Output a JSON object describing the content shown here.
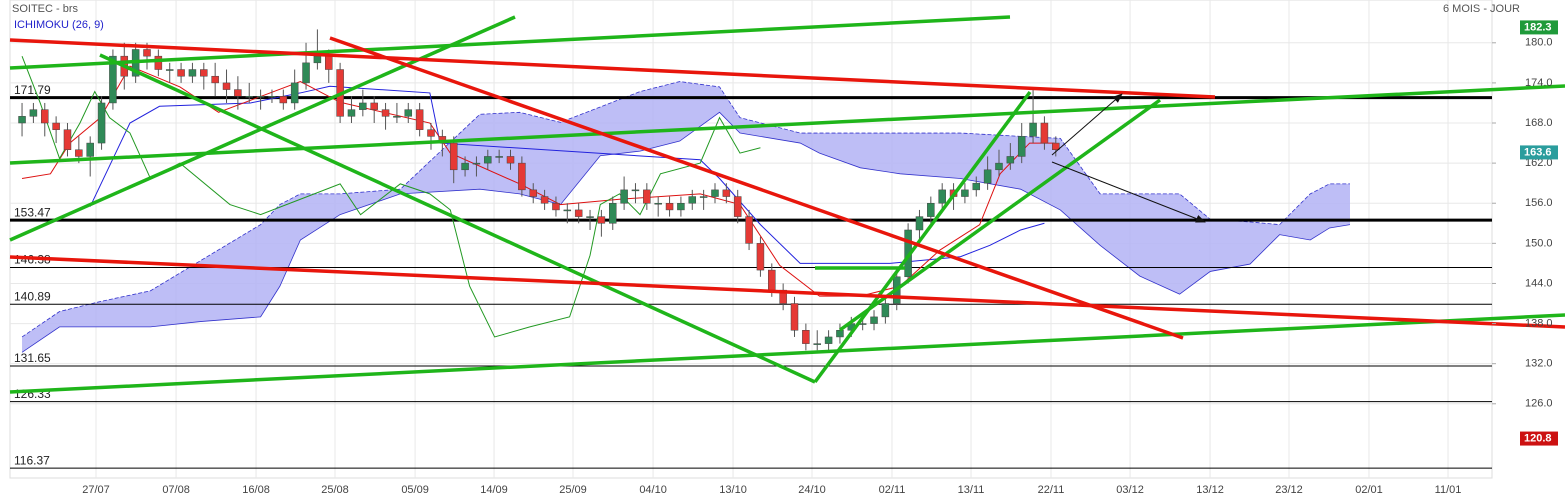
{
  "chart_data": {
    "type": "candlestick",
    "title": "SOITEC - brs",
    "period": "6 MOIS - JOUR",
    "indicator": "ICHIMOKU (26, 9)",
    "xlim": [
      -1.06,
      129.4
    ],
    "ylim": [
      114.9,
      186.4
    ],
    "xticks": [
      {
        "value": 6.51,
        "label": "27/07"
      },
      {
        "value": 13.56,
        "label": "07/08"
      },
      {
        "value": 20.6,
        "label": "16/08"
      },
      {
        "value": 27.55,
        "label": "25/08"
      },
      {
        "value": 34.6,
        "label": "05/09"
      },
      {
        "value": 41.55,
        "label": "14/09"
      },
      {
        "value": 48.5,
        "label": "25/09"
      },
      {
        "value": 55.55,
        "label": "04/10"
      },
      {
        "value": 62.59,
        "label": "13/10"
      },
      {
        "value": 69.54,
        "label": "24/10"
      },
      {
        "value": 76.58,
        "label": "02/11"
      },
      {
        "value": 83.54,
        "label": "13/11"
      },
      {
        "value": 90.58,
        "label": "22/11"
      },
      {
        "value": 97.54,
        "label": "03/12"
      },
      {
        "value": 104.58,
        "label": "13/12"
      },
      {
        "value": 111.53,
        "label": "23/12"
      },
      {
        "value": 118.57,
        "label": "02/01"
      },
      {
        "value": 125.53,
        "label": "11/01"
      }
    ],
    "yticks": [
      {
        "value": 180,
        "label": "180.0"
      },
      {
        "value": 174,
        "label": "174.0"
      },
      {
        "value": 168,
        "label": "168.0"
      },
      {
        "value": 162,
        "label": "162.0"
      },
      {
        "value": 156,
        "label": "156.0"
      },
      {
        "value": 150,
        "label": "150.0"
      },
      {
        "value": 144,
        "label": "144.0"
      },
      {
        "value": 138,
        "label": "138.0"
      },
      {
        "value": 132,
        "label": "132.0"
      },
      {
        "value": 126,
        "label": "126.0"
      }
    ],
    "grid": true,
    "up_color": "#2f8a57",
    "down_color": "#e53935",
    "x": [
      0,
      1,
      2,
      3,
      4,
      5,
      6,
      7,
      8,
      9,
      10,
      11,
      12,
      13,
      14,
      15,
      16,
      17,
      18,
      19,
      20,
      21,
      22,
      23,
      24,
      25,
      26,
      27,
      28,
      29,
      30,
      31,
      32,
      33,
      34,
      35,
      36,
      37,
      38,
      39,
      40,
      41,
      42,
      43,
      44,
      45,
      46,
      47,
      48,
      49,
      50,
      51,
      52,
      53,
      54,
      55,
      56,
      57,
      58,
      59,
      60,
      61,
      62,
      63,
      64,
      65,
      66,
      67,
      68,
      69,
      70,
      71,
      72,
      73,
      74,
      75,
      76,
      77,
      78,
      79,
      80,
      81,
      82,
      83,
      84,
      85,
      86,
      87,
      88,
      89,
      90,
      91
    ],
    "candles": [
      [
        168,
        171,
        166,
        169
      ],
      [
        169,
        171,
        168,
        170
      ],
      [
        170,
        171,
        166,
        168
      ],
      [
        168,
        169,
        165,
        167
      ],
      [
        167,
        168,
        163,
        164
      ],
      [
        164,
        166,
        162,
        163
      ],
      [
        163,
        166,
        160,
        165
      ],
      [
        165,
        172,
        164,
        171
      ],
      [
        171,
        179,
        170,
        178
      ],
      [
        178,
        180,
        173,
        175
      ],
      [
        175,
        180,
        174,
        179
      ],
      [
        179,
        180,
        176,
        178
      ],
      [
        178,
        179,
        175,
        176
      ],
      [
        176,
        177,
        174,
        176
      ],
      [
        176,
        177,
        174,
        175
      ],
      [
        175,
        177,
        174,
        176
      ],
      [
        176,
        177,
        173,
        175
      ],
      [
        175,
        177,
        172,
        174
      ],
      [
        174,
        176,
        171,
        173
      ],
      [
        173,
        175,
        170,
        172
      ],
      [
        172,
        174,
        171,
        172
      ],
      [
        172,
        173,
        170,
        172
      ],
      [
        172,
        173,
        171,
        172
      ],
      [
        172,
        173,
        170,
        171
      ],
      [
        171,
        176,
        170,
        174
      ],
      [
        174,
        180,
        173,
        177
      ],
      [
        177,
        182,
        176,
        178
      ],
      [
        178,
        179,
        174,
        176
      ],
      [
        176,
        177,
        168,
        169
      ],
      [
        169,
        172,
        168,
        170
      ],
      [
        170,
        173,
        169,
        171
      ],
      [
        171,
        172,
        168,
        170
      ],
      [
        170,
        171,
        167,
        169
      ],
      [
        169,
        171,
        168,
        169
      ],
      [
        169,
        171,
        168,
        170
      ],
      [
        170,
        171,
        166,
        167
      ],
      [
        167,
        168,
        164,
        166
      ],
      [
        166,
        167,
        163,
        165
      ],
      [
        165,
        166,
        159,
        161
      ],
      [
        161,
        163,
        160,
        162
      ],
      [
        162,
        163,
        160,
        162
      ],
      [
        162,
        164,
        161,
        163
      ],
      [
        163,
        164,
        162,
        163
      ],
      [
        163,
        164,
        161,
        162
      ],
      [
        162,
        163,
        157,
        158
      ],
      [
        158,
        159,
        156,
        157
      ],
      [
        157,
        158,
        155,
        156
      ],
      [
        156,
        157,
        154,
        155
      ],
      [
        155,
        156,
        153,
        155
      ],
      [
        155,
        156,
        153,
        154
      ],
      [
        154,
        155,
        152,
        154
      ],
      [
        154,
        155,
        151,
        153
      ],
      [
        153,
        157,
        152,
        156
      ],
      [
        156,
        160,
        155,
        158
      ],
      [
        158,
        159,
        156,
        158
      ],
      [
        158,
        159,
        155,
        156
      ],
      [
        156,
        157,
        154,
        156
      ],
      [
        156,
        157,
        154,
        155
      ],
      [
        155,
        157,
        154,
        156
      ],
      [
        156,
        158,
        155,
        157
      ],
      [
        157,
        158,
        155,
        157
      ],
      [
        157,
        159,
        156,
        158
      ],
      [
        158,
        159,
        156,
        157
      ],
      [
        157,
        158,
        153,
        154
      ],
      [
        154,
        155,
        149,
        150
      ],
      [
        150,
        151,
        145,
        146
      ],
      [
        146,
        147,
        142,
        143
      ],
      [
        143,
        144,
        140,
        141
      ],
      [
        141,
        142,
        136,
        137
      ],
      [
        137,
        138,
        134,
        135
      ],
      [
        135,
        137,
        134,
        135
      ],
      [
        135,
        137,
        134,
        136
      ],
      [
        136,
        138,
        135,
        137
      ],
      [
        137,
        139,
        136,
        138
      ],
      [
        138,
        139,
        137,
        138
      ],
      [
        138,
        140,
        137,
        139
      ],
      [
        139,
        142,
        138,
        141
      ],
      [
        141,
        146,
        140,
        145
      ],
      [
        145,
        153,
        144,
        152
      ],
      [
        152,
        155,
        150,
        154
      ],
      [
        154,
        157,
        153,
        156
      ],
      [
        156,
        159,
        155,
        158
      ],
      [
        158,
        159,
        155,
        157
      ],
      [
        157,
        159,
        156,
        158
      ],
      [
        158,
        160,
        157,
        159
      ],
      [
        159,
        163,
        158,
        161
      ],
      [
        161,
        164,
        160,
        162
      ],
      [
        162,
        165,
        161,
        163
      ],
      [
        163,
        168,
        162,
        166
      ],
      [
        166,
        173,
        165,
        168
      ],
      [
        168,
        169,
        164,
        165
      ],
      [
        165,
        166,
        163,
        164
      ]
    ],
    "ichimoku": {
      "cloud": {
        "fill": "#b3b3f5",
        "edge": "#3333cc",
        "x": [
          0,
          3.3,
          6.9,
          11.3,
          15.7,
          21,
          22.7,
          24.5,
          28,
          33.3,
          40.3,
          43.8,
          47.4,
          50.9,
          54.4,
          57.9,
          61.4,
          63.2,
          68.5,
          70.2,
          73.8,
          77.3,
          82.6,
          87.9,
          91.4,
          94.9,
          98.4,
          101.9,
          104.6,
          108.1,
          110.7,
          113.4,
          115.1,
          116.9
        ],
        "upper": [
          136,
          139.8,
          141.3,
          142.9,
          147.4,
          152.8,
          155.8,
          157.4,
          157.4,
          158.1,
          169.3,
          169.6,
          168.1,
          170.4,
          172.7,
          174.2,
          173.4,
          168.8,
          166.5,
          166.5,
          166.5,
          166.5,
          166.5,
          166,
          165.7,
          157.4,
          157.4,
          157.4,
          153.6,
          153.2,
          152.8,
          157.4,
          158.9,
          158.9
        ],
        "lower": [
          133.7,
          137.5,
          137.5,
          137.5,
          138.3,
          139,
          143.6,
          150.5,
          154.3,
          157.4,
          158.1,
          157.4,
          155.8,
          163.1,
          163.8,
          165.3,
          169.6,
          166.5,
          165,
          163.5,
          161.3,
          160.4,
          159.7,
          158.1,
          155,
          149.7,
          145.1,
          142.4,
          145.8,
          146.9,
          151.3,
          150.5,
          152.3,
          152.8
        ]
      },
      "kijun": {
        "color": "#2222dd",
        "x": [
          6,
          9.5,
          12.1,
          20.1,
          24.5,
          27.1,
          35.9,
          36.8,
          59.7,
          61.4,
          65,
          68.5,
          76.4,
          82.6,
          85.2,
          87.9,
          90
        ],
        "values": [
          155.5,
          168,
          170.5,
          171,
          172.5,
          173.5,
          172.5,
          165,
          162.5,
          159.7,
          152.8,
          147,
          147,
          148,
          149.7,
          152,
          153
        ]
      },
      "tenkan": {
        "color": "#dd1111",
        "x": [
          0,
          2.5,
          4.2,
          6.9,
          9.5,
          13.9,
          17.3,
          24.5,
          28,
          35.9,
          37.7,
          43.8,
          47.4,
          52.6,
          59.7,
          63.2,
          66.7,
          70.2,
          73.8,
          77.3,
          80.8,
          84.3,
          86.1,
          88.7,
          90.9
        ],
        "values": [
          159.7,
          160.4,
          165,
          168.8,
          176.5,
          173.4,
          169.6,
          174.2,
          171.1,
          168,
          163.5,
          158.9,
          155.8,
          156.6,
          157.4,
          155.8,
          146.7,
          142.1,
          142.1,
          143.6,
          149,
          152.8,
          160.4,
          165,
          165
        ]
      },
      "chikou": {
        "color": "#229922",
        "x": [
          0,
          1.6,
          3.3,
          5.1,
          6.4,
          7.7,
          9.5,
          11.3,
          13.9,
          18.3,
          21,
          24.5,
          28,
          29.8,
          33.3,
          35.9,
          37.7,
          39.4,
          41.6,
          44.7,
          48.2,
          50,
          50.9,
          52.6,
          54.4,
          56.2,
          59.7,
          61.4,
          63.2,
          65
        ],
        "values": [
          178,
          171,
          162.7,
          168,
          172.7,
          168.8,
          166.5,
          159.7,
          162,
          155.8,
          154.3,
          156.6,
          158.9,
          154.3,
          158.9,
          157.4,
          155,
          143.6,
          136,
          137.5,
          139,
          148.2,
          155.8,
          157.4,
          154.3,
          160.4,
          162,
          168.8,
          163.5,
          164.3
        ]
      }
    },
    "levels": [
      {
        "value": 171.79,
        "bold": true
      },
      {
        "value": 153.47,
        "bold": true
      },
      {
        "value": 146.38,
        "bold": false
      },
      {
        "value": 140.89,
        "bold": false
      },
      {
        "value": 131.65,
        "bold": false
      },
      {
        "value": 126.33,
        "bold": false
      },
      {
        "value": 116.37,
        "bold": false
      }
    ],
    "price_tags": [
      {
        "value": 182.3,
        "color": "#1f9a3a"
      },
      {
        "value": 163.6,
        "color": "#2a9d9d"
      },
      {
        "value": 120.8,
        "color": "#cc1111"
      }
    ]
  }
}
